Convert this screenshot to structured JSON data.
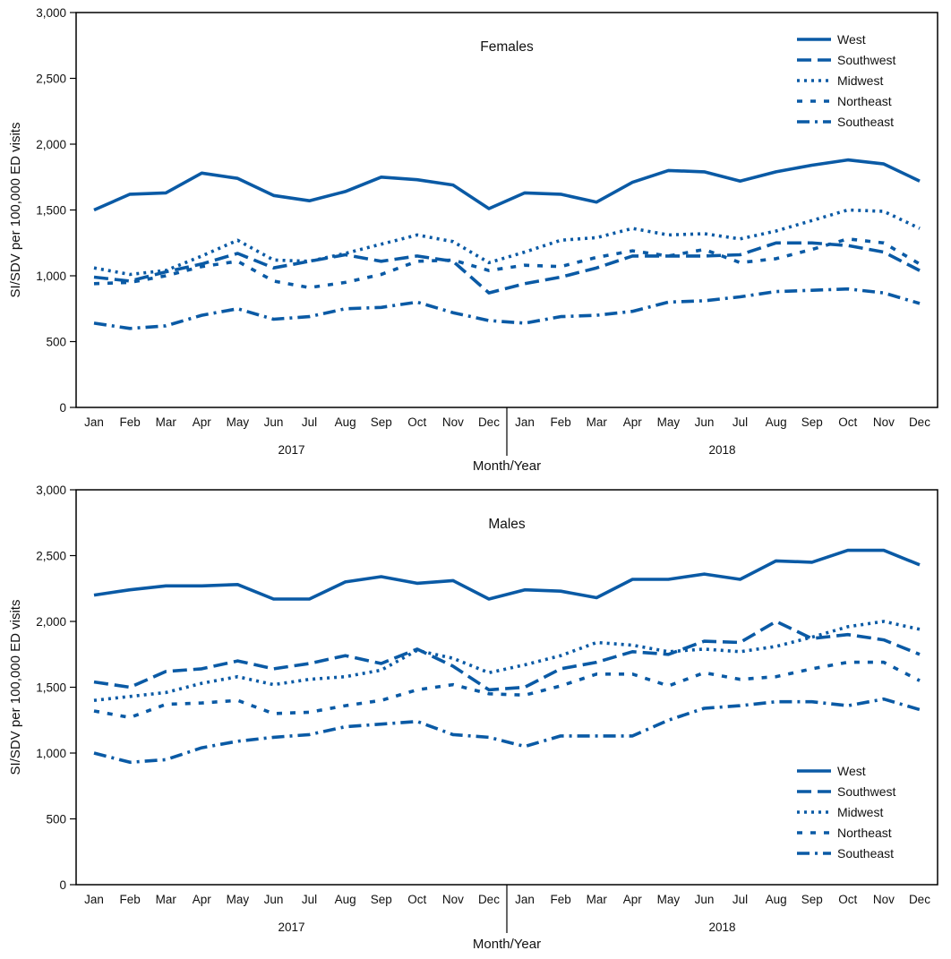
{
  "colors": {
    "series": "#0a5aa5",
    "axis": "#000000",
    "text": "#111111"
  },
  "chart_data": [
    {
      "type": "line",
      "title": "Females",
      "xlabel": "Month/Year",
      "ylabel": "SI/SDV per 100,000 ED visits",
      "ylim": [
        0,
        3000
      ],
      "yticks": [
        0,
        500,
        1000,
        1500,
        2000,
        2500,
        3000
      ],
      "ytick_labels": [
        "0",
        "500",
        "1,000",
        "1,500",
        "2,000",
        "2,500",
        "3,000"
      ],
      "categories": [
        "Jan",
        "Feb",
        "Mar",
        "Apr",
        "May",
        "Jun",
        "Jul",
        "Aug",
        "Sep",
        "Oct",
        "Nov",
        "Dec",
        "Jan",
        "Feb",
        "Mar",
        "Apr",
        "May",
        "Jun",
        "Jul",
        "Aug",
        "Sep",
        "Oct",
        "Nov",
        "Dec"
      ],
      "years": [
        "2017",
        "2018"
      ],
      "legend_position": "top-right",
      "series": [
        {
          "name": "West",
          "dash": "solid",
          "values": [
            1500,
            1620,
            1630,
            1780,
            1740,
            1610,
            1570,
            1640,
            1750,
            1730,
            1690,
            1510,
            1630,
            1620,
            1560,
            1710,
            1800,
            1790,
            1720,
            1790,
            1840,
            1880,
            1850,
            1720
          ]
        },
        {
          "name": "Southwest",
          "dash": "dashed",
          "values": [
            990,
            960,
            1030,
            1090,
            1170,
            1060,
            1110,
            1160,
            1110,
            1150,
            1110,
            870,
            940,
            990,
            1060,
            1150,
            1150,
            1150,
            1160,
            1250,
            1250,
            1230,
            1180,
            1040
          ]
        },
        {
          "name": "Midwest",
          "dash": "dotted",
          "values": [
            1060,
            1010,
            1040,
            1150,
            1270,
            1120,
            1110,
            1170,
            1240,
            1310,
            1260,
            1100,
            1180,
            1270,
            1290,
            1360,
            1310,
            1320,
            1280,
            1340,
            1420,
            1500,
            1490,
            1360
          ]
        },
        {
          "name": "Northeast",
          "dash": "short-dash",
          "values": [
            940,
            950,
            1000,
            1070,
            1110,
            960,
            910,
            950,
            1010,
            1110,
            1120,
            1040,
            1080,
            1070,
            1140,
            1190,
            1150,
            1200,
            1100,
            1130,
            1200,
            1280,
            1250,
            1090
          ]
        },
        {
          "name": "Southeast",
          "dash": "dash-dot",
          "values": [
            640,
            600,
            620,
            700,
            750,
            670,
            690,
            750,
            760,
            800,
            720,
            660,
            640,
            690,
            700,
            730,
            800,
            810,
            840,
            880,
            890,
            900,
            870,
            790
          ]
        }
      ]
    },
    {
      "type": "line",
      "title": "Males",
      "xlabel": "Month/Year",
      "ylabel": "SI/SDV per 100,000 ED visits",
      "ylim": [
        0,
        3000
      ],
      "yticks": [
        0,
        500,
        1000,
        1500,
        2000,
        2500,
        3000
      ],
      "ytick_labels": [
        "0",
        "500",
        "1,000",
        "1,500",
        "2,000",
        "2,500",
        "3,000"
      ],
      "categories": [
        "Jan",
        "Feb",
        "Mar",
        "Apr",
        "May",
        "Jun",
        "Jul",
        "Aug",
        "Sep",
        "Oct",
        "Nov",
        "Dec",
        "Jan",
        "Feb",
        "Mar",
        "Apr",
        "May",
        "Jun",
        "Jul",
        "Aug",
        "Sep",
        "Oct",
        "Nov",
        "Dec"
      ],
      "years": [
        "2017",
        "2018"
      ],
      "legend_position": "bottom-right",
      "series": [
        {
          "name": "West",
          "dash": "solid",
          "values": [
            2200,
            2240,
            2270,
            2270,
            2280,
            2170,
            2170,
            2300,
            2340,
            2290,
            2310,
            2170,
            2240,
            2230,
            2180,
            2320,
            2320,
            2360,
            2320,
            2460,
            2450,
            2540,
            2540,
            2430
          ]
        },
        {
          "name": "Southwest",
          "dash": "dashed",
          "values": [
            1540,
            1500,
            1620,
            1640,
            1700,
            1640,
            1680,
            1740,
            1680,
            1790,
            1660,
            1480,
            1500,
            1640,
            1690,
            1770,
            1750,
            1850,
            1840,
            2000,
            1870,
            1900,
            1860,
            1750
          ]
        },
        {
          "name": "Midwest",
          "dash": "dotted",
          "values": [
            1400,
            1430,
            1460,
            1530,
            1580,
            1520,
            1560,
            1580,
            1630,
            1780,
            1720,
            1610,
            1670,
            1740,
            1840,
            1820,
            1770,
            1790,
            1770,
            1810,
            1880,
            1960,
            2000,
            1940
          ]
        },
        {
          "name": "Northeast",
          "dash": "short-dash",
          "values": [
            1320,
            1270,
            1370,
            1380,
            1400,
            1300,
            1310,
            1360,
            1400,
            1480,
            1520,
            1450,
            1440,
            1510,
            1600,
            1600,
            1510,
            1610,
            1560,
            1580,
            1640,
            1690,
            1690,
            1550
          ]
        },
        {
          "name": "Southeast",
          "dash": "dash-dot",
          "values": [
            1000,
            930,
            950,
            1040,
            1090,
            1120,
            1140,
            1200,
            1220,
            1240,
            1140,
            1120,
            1050,
            1130,
            1130,
            1130,
            1250,
            1340,
            1360,
            1390,
            1390,
            1360,
            1410,
            1330
          ]
        }
      ]
    }
  ]
}
